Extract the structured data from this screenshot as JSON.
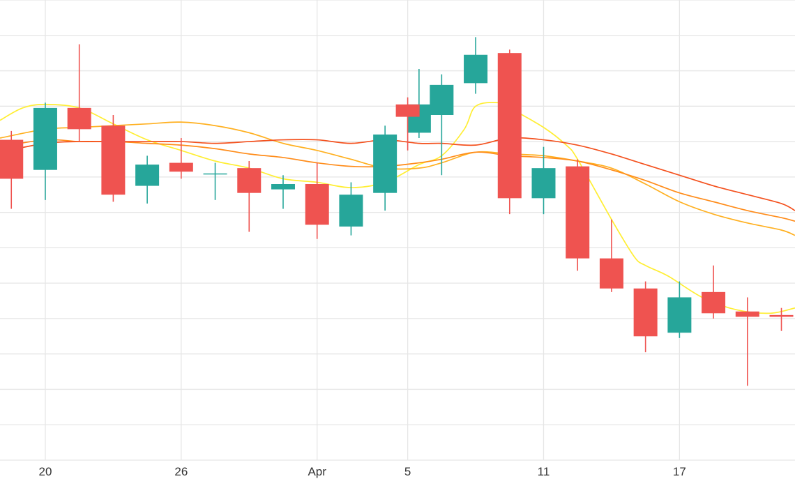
{
  "chart_data": {
    "type": "candlestick",
    "x_tick_labels": [
      "20",
      "26",
      "Apr",
      "5",
      "11",
      "17"
    ],
    "x_tick_days": [
      20,
      26,
      32,
      36,
      42,
      48
    ],
    "x_range": [
      18,
      53.1
    ],
    "y_range": [
      0,
      13
    ],
    "y_grid_step": 1,
    "grid": true,
    "legend": "none",
    "colors": {
      "up": "#26a69a",
      "down": "#ef5350",
      "ma1": "#ffee33",
      "ma2": "#ffb020",
      "ma3": "#ff8c1a",
      "ma4": "#f4511e",
      "grid": "#e6e6e6"
    },
    "candles": [
      {
        "day": 18.5,
        "open": 9.05,
        "high": 9.3,
        "low": 7.1,
        "close": 7.95
      },
      {
        "day": 20,
        "open": 8.2,
        "high": 10.1,
        "low": 7.35,
        "close": 9.95
      },
      {
        "day": 21.5,
        "open": 9.95,
        "high": 11.75,
        "low": 9.0,
        "close": 9.35
      },
      {
        "day": 23,
        "open": 9.45,
        "high": 9.75,
        "low": 7.3,
        "close": 7.5
      },
      {
        "day": 24.5,
        "open": 7.75,
        "high": 8.6,
        "low": 7.25,
        "close": 8.35
      },
      {
        "day": 26,
        "open": 8.4,
        "high": 9.1,
        "low": 7.95,
        "close": 8.15
      },
      {
        "day": 27.5,
        "open": 8.1,
        "high": 8.4,
        "low": 7.35,
        "close": 8.1
      },
      {
        "day": 29,
        "open": 8.25,
        "high": 8.45,
        "low": 6.45,
        "close": 7.55
      },
      {
        "day": 30.5,
        "open": 7.65,
        "high": 8.05,
        "low": 7.1,
        "close": 7.8
      },
      {
        "day": 32,
        "open": 7.8,
        "high": 8.4,
        "low": 6.25,
        "close": 6.65
      },
      {
        "day": 33.5,
        "open": 6.6,
        "high": 7.85,
        "low": 6.35,
        "close": 7.5
      },
      {
        "day": 35,
        "open": 7.55,
        "high": 9.45,
        "low": 7.05,
        "close": 9.2
      },
      {
        "day": 36.5,
        "open": 9.25,
        "high": 11.05,
        "low": 9.1,
        "close": 10.05
      },
      {
        "day": 36,
        "open": 10.05,
        "high": 10.25,
        "low": 8.75,
        "close": 9.7
      },
      {
        "day": 37.5,
        "open": 9.75,
        "high": 10.9,
        "low": 8.05,
        "close": 10.6
      },
      {
        "day": 39,
        "open": 10.65,
        "high": 11.95,
        "low": 10.35,
        "close": 11.45
      },
      {
        "day": 40.5,
        "open": 11.5,
        "high": 11.6,
        "low": 6.95,
        "close": 7.4
      },
      {
        "day": 42,
        "open": 7.4,
        "high": 8.85,
        "low": 6.95,
        "close": 8.25
      },
      {
        "day": 43.5,
        "open": 8.3,
        "high": 8.5,
        "low": 5.35,
        "close": 5.7
      },
      {
        "day": 45,
        "open": 5.7,
        "high": 6.8,
        "low": 4.75,
        "close": 4.85
      },
      {
        "day": 46.5,
        "open": 4.85,
        "high": 5.05,
        "low": 3.05,
        "close": 3.5
      },
      {
        "day": 48,
        "open": 3.6,
        "high": 5.05,
        "low": 3.45,
        "close": 4.6
      },
      {
        "day": 49.5,
        "open": 4.75,
        "high": 5.5,
        "low": 4.0,
        "close": 4.15
      },
      {
        "day": 51,
        "open": 4.2,
        "high": 4.6,
        "low": 2.1,
        "close": 4.05
      },
      {
        "day": 52.5,
        "open": 4.1,
        "high": 4.3,
        "low": 3.65,
        "close": 4.05
      }
    ],
    "series": [
      {
        "color_key": "ma1",
        "x": [
          18,
          19,
          20,
          21.5,
          23,
          24.5,
          26,
          27.5,
          29,
          30.5,
          32,
          33.5,
          35,
          36.5,
          37.5,
          38.5,
          39,
          40,
          40.5,
          42,
          43,
          43.5,
          45,
          46,
          46.5,
          47.5,
          49,
          50.5,
          52,
          53.1
        ],
        "y": [
          9.6,
          9.95,
          10.05,
          9.95,
          9.5,
          9.05,
          8.75,
          8.45,
          8.25,
          7.95,
          7.85,
          7.7,
          7.85,
          8.35,
          8.6,
          9.35,
          10.0,
          10.1,
          9.95,
          9.4,
          8.9,
          8.5,
          6.8,
          5.75,
          5.5,
          5.2,
          4.6,
          4.25,
          4.15,
          4.3
        ]
      },
      {
        "color_key": "ma2",
        "x": [
          18,
          20,
          21.5,
          23,
          24.5,
          26,
          27.5,
          29,
          30.5,
          32,
          33.5,
          35,
          36.5,
          37.5,
          39,
          40.5,
          42,
          43.5,
          45,
          46.5,
          48,
          49.5,
          51,
          52.5,
          53.1
        ],
        "y": [
          9.1,
          9.35,
          9.4,
          9.45,
          9.5,
          9.55,
          9.45,
          9.25,
          8.95,
          8.75,
          8.5,
          8.25,
          8.25,
          8.4,
          8.7,
          8.65,
          8.6,
          8.45,
          8.25,
          7.8,
          7.3,
          6.95,
          6.7,
          6.5,
          6.35
        ]
      },
      {
        "color_key": "ma3",
        "x": [
          18,
          20,
          21.5,
          23,
          24.5,
          26,
          27.5,
          29,
          30.5,
          32,
          33.5,
          35,
          36.5,
          37.5,
          39,
          40.5,
          42,
          43.5,
          45,
          46.5,
          48,
          49.5,
          51,
          52.5,
          53.1
        ],
        "y": [
          8.85,
          9.05,
          9.0,
          9.0,
          8.95,
          8.9,
          8.8,
          8.65,
          8.55,
          8.4,
          8.3,
          8.3,
          8.4,
          8.5,
          8.7,
          8.6,
          8.55,
          8.45,
          8.2,
          7.9,
          7.55,
          7.3,
          7.05,
          6.85,
          6.75
        ]
      },
      {
        "color_key": "ma4",
        "x": [
          18,
          20,
          21.5,
          23,
          24.5,
          26,
          27.5,
          29,
          30.5,
          32,
          33.5,
          35,
          36.5,
          37.5,
          39,
          40.5,
          42,
          43.5,
          45,
          46.5,
          48,
          49.5,
          51,
          52.5,
          53.1
        ],
        "y": [
          8.7,
          8.95,
          9.0,
          9.0,
          9.0,
          9.0,
          8.95,
          9.0,
          9.05,
          9.05,
          8.95,
          9.05,
          8.95,
          8.95,
          8.9,
          9.1,
          9.05,
          8.9,
          8.65,
          8.35,
          8.05,
          7.75,
          7.5,
          7.25,
          7.05
        ]
      }
    ]
  }
}
